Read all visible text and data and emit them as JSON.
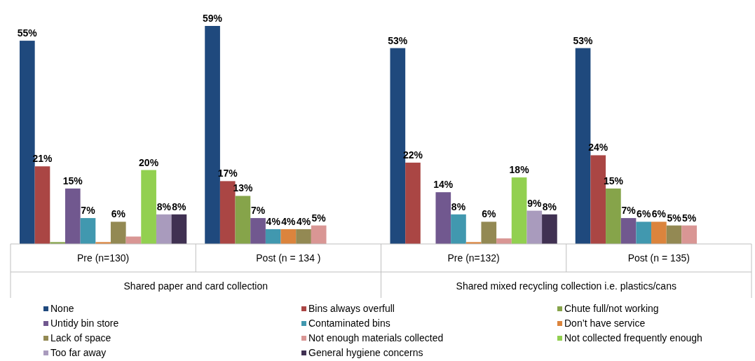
{
  "chart_data": {
    "type": "bar",
    "categories": [
      "Pre (n=130)",
      "Post (n = 134 )",
      "Pre (n=132)",
      "Post (n = 135)"
    ],
    "annotations": [
      "Shared paper and card collection",
      "Shared mixed recycling collection i.e. plastics/cans"
    ],
    "legend": "bottom",
    "series": [
      {
        "name": "None",
        "color": "#1f497d",
        "values": [
          55,
          59,
          53,
          53
        ],
        "value_labels": [
          "55%",
          "59%",
          "53%",
          "53%"
        ]
      },
      {
        "name": "Bins always overfull",
        "color": "#aa4644",
        "values": [
          21,
          17,
          22,
          24
        ],
        "value_labels": [
          "21%",
          "17%",
          "22%",
          "24%"
        ]
      },
      {
        "name": "Chute full/not working",
        "color": "#86a44a",
        "values": [
          0.5,
          13,
          null,
          15
        ],
        "value_labels": [
          null,
          "13%",
          null,
          "15%"
        ]
      },
      {
        "name": "Untidy bin store",
        "color": "#71588f",
        "values": [
          15,
          7,
          14,
          7
        ],
        "value_labels": [
          "15%",
          "7%",
          "14%",
          "7%"
        ]
      },
      {
        "name": "Contaminated bins",
        "color": "#4198af",
        "values": [
          7,
          4,
          8,
          6
        ],
        "value_labels": [
          "7%",
          "4%",
          "8%",
          "6%"
        ]
      },
      {
        "name": "Don’t have service",
        "color": "#db843d",
        "values": [
          0.5,
          4,
          0.5,
          6
        ],
        "value_labels": [
          null,
          "4%",
          null,
          "6%"
        ]
      },
      {
        "name": "Lack of space",
        "color": "#938953",
        "values": [
          6,
          4,
          6,
          5
        ],
        "value_labels": [
          "6%",
          "4%",
          "6%",
          "5%"
        ]
      },
      {
        "name": "Not enough materials collected",
        "color": "#d99694",
        "values": [
          2,
          5,
          1.5,
          5
        ],
        "value_labels": [
          null,
          "5%",
          null,
          "5%"
        ]
      },
      {
        "name": "Not collected frequently enough",
        "color": "#92d050",
        "values": [
          20,
          null,
          18,
          null
        ],
        "value_labels": [
          "20%",
          null,
          "18%",
          null
        ]
      },
      {
        "name": "Too far away",
        "color": "#a99bbd",
        "values": [
          8,
          null,
          9,
          null
        ],
        "value_labels": [
          "8%",
          null,
          "9%",
          null
        ]
      },
      {
        "name": "General hygiene concerns",
        "color": "#403152",
        "values": [
          8,
          null,
          8,
          null
        ],
        "value_labels": [
          "8%",
          null,
          "8%",
          null
        ]
      }
    ]
  }
}
